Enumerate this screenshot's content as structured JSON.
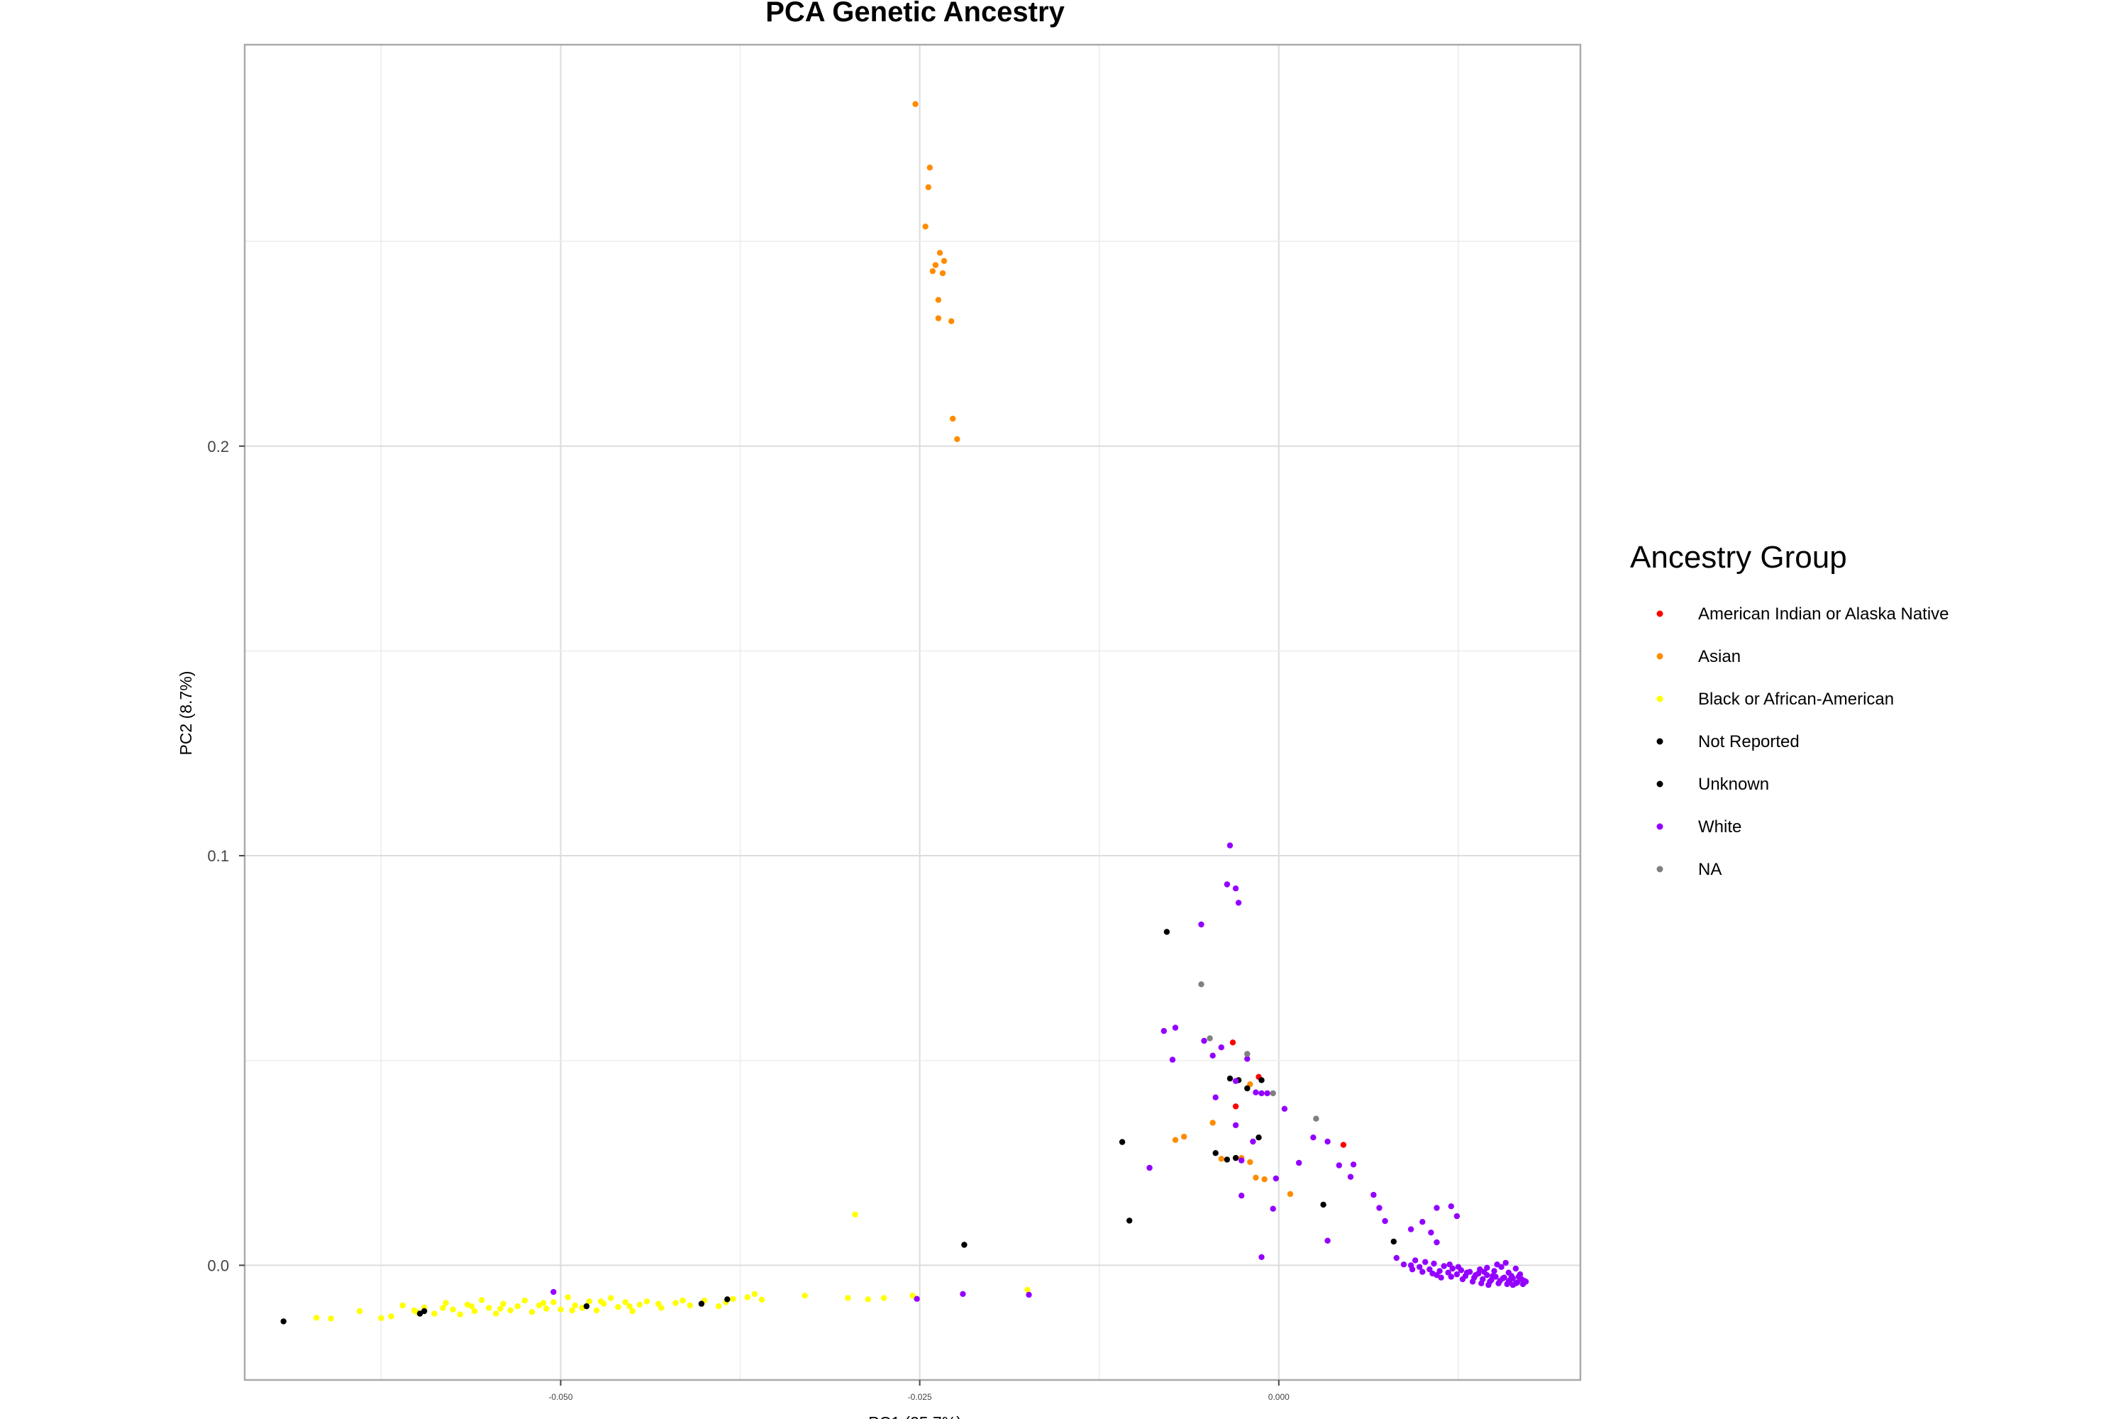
{
  "chart_data": {
    "type": "scatter",
    "title": "PCA Genetic Ancestry",
    "xlabel": "PC1 (25.7%)",
    "ylabel": "PC2 (8.7%)",
    "xlim": [
      -0.072,
      0.021
    ],
    "ylim": [
      -0.028,
      0.298
    ],
    "x_ticks": [
      -0.05,
      -0.025,
      0.0
    ],
    "x_tick_labels": [
      "-0.050",
      "-0.025",
      "0.000"
    ],
    "y_ticks": [
      0.0,
      0.1,
      0.2
    ],
    "y_tick_labels": [
      "0.0",
      "0.1",
      "0.2"
    ],
    "grid": true,
    "legend": {
      "title": "Ancestry Group",
      "position": "right",
      "entries": [
        {
          "label": "American Indian or Alaska Native",
          "color": "#ff0000"
        },
        {
          "label": "Asian",
          "color": "#ff8c00"
        },
        {
          "label": "Black or African-American",
          "color": "#ffff00"
        },
        {
          "label": "Not Reported",
          "color": "#000000"
        },
        {
          "label": "Unknown",
          "color": "#000000"
        },
        {
          "label": "White",
          "color": "#9400ff"
        },
        {
          "label": "NA",
          "color": "#808080"
        }
      ]
    },
    "series": [
      {
        "name": "American Indian or Alaska Native",
        "color": "#ff0000",
        "points": [
          [
            -0.0032,
            0.0544
          ],
          [
            -0.0014,
            0.046
          ],
          [
            -0.003,
            0.0388
          ],
          [
            0.0045,
            0.0294
          ]
        ]
      },
      {
        "name": "Asian",
        "color": "#ff8c00",
        "points": [
          [
            -0.0253,
            0.2835
          ],
          [
            -0.0243,
            0.268
          ],
          [
            -0.0244,
            0.2632
          ],
          [
            -0.0246,
            0.2536
          ],
          [
            -0.0236,
            0.2472
          ],
          [
            -0.0239,
            0.2442
          ],
          [
            -0.0241,
            0.2427
          ],
          [
            -0.0233,
            0.2452
          ],
          [
            -0.0234,
            0.2422
          ],
          [
            -0.0237,
            0.2357
          ],
          [
            -0.0237,
            0.2312
          ],
          [
            -0.0228,
            0.2305
          ],
          [
            -0.0227,
            0.2067
          ],
          [
            -0.0224,
            0.2017
          ],
          [
            -0.0072,
            0.0306
          ],
          [
            -0.0066,
            0.0314
          ],
          [
            -0.0046,
            0.0348
          ],
          [
            -0.004,
            0.026
          ],
          [
            -0.0026,
            0.0262
          ],
          [
            -0.002,
            0.0252
          ],
          [
            -0.0016,
            0.0214
          ],
          [
            -0.001,
            0.021
          ],
          [
            0.0008,
            0.0174
          ],
          [
            -0.002,
            0.0442
          ]
        ]
      },
      {
        "name": "Black or African-American",
        "color": "#ffff00",
        "points": [
          [
            -0.067,
            -0.0128
          ],
          [
            -0.066,
            -0.013
          ],
          [
            -0.064,
            -0.0112
          ],
          [
            -0.0625,
            -0.0129
          ],
          [
            -0.0618,
            -0.0125
          ],
          [
            -0.061,
            -0.0098
          ],
          [
            -0.06,
            -0.0115
          ],
          [
            -0.0595,
            -0.0103
          ],
          [
            -0.0588,
            -0.0118
          ],
          [
            -0.058,
            -0.0092
          ],
          [
            -0.0575,
            -0.0108
          ],
          [
            -0.057,
            -0.012
          ],
          [
            -0.0565,
            -0.0096
          ],
          [
            -0.056,
            -0.0112
          ],
          [
            -0.0555,
            -0.0085
          ],
          [
            -0.055,
            -0.0104
          ],
          [
            -0.0545,
            -0.0118
          ],
          [
            -0.054,
            -0.0094
          ],
          [
            -0.0535,
            -0.011
          ],
          [
            -0.053,
            -0.01
          ],
          [
            -0.0525,
            -0.0086
          ],
          [
            -0.052,
            -0.0114
          ],
          [
            -0.0515,
            -0.0098
          ],
          [
            -0.051,
            -0.0106
          ],
          [
            -0.0505,
            -0.009
          ],
          [
            -0.05,
            -0.0108
          ],
          [
            -0.0495,
            -0.0078
          ],
          [
            -0.049,
            -0.0098
          ],
          [
            -0.0485,
            -0.0104
          ],
          [
            -0.048,
            -0.0088
          ],
          [
            -0.0475,
            -0.011
          ],
          [
            -0.047,
            -0.0094
          ],
          [
            -0.0465,
            -0.008
          ],
          [
            -0.046,
            -0.0102
          ],
          [
            -0.0455,
            -0.009
          ],
          [
            -0.045,
            -0.0112
          ],
          [
            -0.0445,
            -0.0096
          ],
          [
            -0.044,
            -0.0088
          ],
          [
            -0.043,
            -0.0104
          ],
          [
            -0.042,
            -0.0092
          ],
          [
            -0.041,
            -0.0098
          ],
          [
            -0.04,
            -0.0086
          ],
          [
            -0.039,
            -0.01
          ],
          [
            -0.038,
            -0.0082
          ],
          [
            -0.037,
            -0.0078
          ],
          [
            -0.036,
            -0.0084
          ],
          [
            -0.033,
            -0.0074
          ],
          [
            -0.03,
            -0.008
          ],
          [
            -0.0286,
            -0.0083
          ],
          [
            -0.0275,
            -0.008
          ],
          [
            -0.0255,
            -0.0074
          ],
          [
            -0.0175,
            -0.006
          ],
          [
            -0.0295,
            0.0124
          ],
          [
            -0.0602,
            -0.011
          ],
          [
            -0.0582,
            -0.0104
          ],
          [
            -0.0562,
            -0.01
          ],
          [
            -0.0542,
            -0.0106
          ],
          [
            -0.0512,
            -0.0092
          ],
          [
            -0.0492,
            -0.011
          ],
          [
            -0.0472,
            -0.0088
          ],
          [
            -0.0452,
            -0.01
          ],
          [
            -0.0432,
            -0.0094
          ],
          [
            -0.0415,
            -0.0086
          ],
          [
            -0.0385,
            -0.009
          ],
          [
            -0.0365,
            -0.007
          ]
        ]
      },
      {
        "name": "Not Reported",
        "color": "#000000",
        "points": [
          [
            -0.0693,
            -0.0137
          ],
          [
            -0.0595,
            -0.0112
          ],
          [
            -0.0384,
            -0.0083
          ],
          [
            -0.0219,
            0.005
          ],
          [
            -0.0109,
            0.0301
          ],
          [
            -0.0104,
            0.0109
          ],
          [
            -0.0078,
            0.0814
          ],
          [
            -0.0044,
            0.0274
          ],
          [
            -0.0034,
            0.0456
          ],
          [
            -0.0022,
            0.0432
          ],
          [
            -0.0012,
            0.0452
          ],
          [
            -0.0014,
            0.0312
          ],
          [
            -0.0036,
            0.0258
          ],
          [
            0.0031,
            0.0148
          ],
          [
            0.008,
            0.0058
          ]
        ]
      },
      {
        "name": "Unknown",
        "color": "#000000",
        "points": [
          [
            -0.0598,
            -0.0118
          ],
          [
            -0.0482,
            -0.01
          ],
          [
            -0.0402,
            -0.0094
          ],
          [
            -0.003,
            0.0262
          ],
          [
            -0.0028,
            0.0452
          ]
        ]
      },
      {
        "name": "White",
        "color": "#9400ff",
        "points": [
          [
            -0.0505,
            -0.0065
          ],
          [
            -0.0252,
            -0.0082
          ],
          [
            -0.022,
            -0.007
          ],
          [
            -0.0174,
            -0.0072
          ],
          [
            -0.009,
            0.0238
          ],
          [
            -0.008,
            0.0572
          ],
          [
            -0.0072,
            0.058
          ],
          [
            -0.0074,
            0.0502
          ],
          [
            -0.0054,
            0.0832
          ],
          [
            -0.0052,
            0.0548
          ],
          [
            -0.0046,
            0.0512
          ],
          [
            -0.0044,
            0.041
          ],
          [
            -0.004,
            0.0532
          ],
          [
            -0.0036,
            0.093
          ],
          [
            -0.0034,
            0.1025
          ],
          [
            -0.003,
            0.092
          ],
          [
            -0.0028,
            0.0885
          ],
          [
            -0.003,
            0.045
          ],
          [
            -0.003,
            0.0342
          ],
          [
            -0.0026,
            0.0256
          ],
          [
            -0.0026,
            0.017
          ],
          [
            -0.0022,
            0.0504
          ],
          [
            -0.0018,
            0.0302
          ],
          [
            -0.0016,
            0.0422
          ],
          [
            -0.0012,
            0.042
          ],
          [
            -0.0012,
            0.002
          ],
          [
            -0.0008,
            0.042
          ],
          [
            -0.0004,
            0.0138
          ],
          [
            -0.0002,
            0.0212
          ],
          [
            0.0004,
            0.0382
          ],
          [
            0.0014,
            0.025
          ],
          [
            0.0024,
            0.0312
          ],
          [
            0.0034,
            0.0302
          ],
          [
            0.0034,
            0.006
          ],
          [
            0.0042,
            0.0244
          ],
          [
            0.005,
            0.0216
          ],
          [
            0.0052,
            0.0246
          ],
          [
            0.0066,
            0.0172
          ],
          [
            0.007,
            0.014
          ],
          [
            0.0074,
            0.0108
          ],
          [
            0.0082,
            0.0018
          ],
          [
            0.0092,
            0.0088
          ],
          [
            0.01,
            0.0106
          ],
          [
            0.0106,
            0.008
          ],
          [
            0.011,
            0.014
          ],
          [
            0.011,
            0.0056
          ],
          [
            0.012,
            0.0144
          ],
          [
            0.0124,
            0.012
          ],
          [
            0.0092,
            0.0
          ],
          [
            0.0095,
            0.0012
          ],
          [
            0.0098,
            -0.0004
          ],
          [
            0.0102,
            0.0008
          ],
          [
            0.0105,
            -0.001
          ],
          [
            0.0108,
            0.0004
          ],
          [
            0.0112,
            -0.0014
          ],
          [
            0.0115,
            -0.0002
          ],
          [
            0.0118,
            -0.0018
          ],
          [
            0.0121,
            -0.0008
          ],
          [
            0.0124,
            -0.0022
          ],
          [
            0.0127,
            -0.0012
          ],
          [
            0.013,
            -0.0026
          ],
          [
            0.0133,
            -0.0016
          ],
          [
            0.0136,
            -0.003
          ],
          [
            0.0139,
            -0.002
          ],
          [
            0.0142,
            -0.0034
          ],
          [
            0.0145,
            -0.0024
          ],
          [
            0.0148,
            -0.0036
          ],
          [
            0.0151,
            -0.0028
          ],
          [
            0.0154,
            -0.0038
          ],
          [
            0.0157,
            -0.003
          ],
          [
            0.016,
            -0.004
          ],
          [
            0.0163,
            -0.0032
          ],
          [
            0.0166,
            -0.0042
          ],
          [
            0.0169,
            -0.0034
          ],
          [
            0.0172,
            -0.004
          ],
          [
            0.014,
            -0.001
          ],
          [
            0.0145,
            -0.0006
          ],
          [
            0.015,
            -0.0014
          ],
          [
            0.0155,
            -0.0004
          ],
          [
            0.016,
            -0.0018
          ],
          [
            0.0165,
            -0.0008
          ],
          [
            0.0168,
            -0.0022
          ],
          [
            0.0152,
            0.0002
          ],
          [
            0.0158,
            0.0006
          ],
          [
            0.0162,
            -0.0026
          ],
          [
            0.0147,
            -0.004
          ],
          [
            0.0153,
            -0.0044
          ],
          [
            0.0159,
            -0.0046
          ],
          [
            0.0165,
            -0.0044
          ],
          [
            0.0171,
            -0.0038
          ],
          [
            0.0135,
            -0.004
          ],
          [
            0.0128,
            -0.0034
          ],
          [
            0.012,
            -0.0028
          ],
          [
            0.011,
            -0.0024
          ],
          [
            0.01,
            -0.0016
          ],
          [
            0.0093,
            -0.001
          ],
          [
            0.0087,
            0.0002
          ],
          [
            0.0143,
            -0.0016
          ],
          [
            0.0149,
            -0.0026
          ],
          [
            0.0156,
            -0.0032
          ],
          [
            0.0161,
            -0.0036
          ],
          [
            0.0167,
            -0.0028
          ],
          [
            0.0137,
            -0.0024
          ],
          [
            0.0131,
            -0.0018
          ],
          [
            0.0125,
            -0.0004
          ],
          [
            0.0119,
            0.0002
          ],
          [
            0.0113,
            -0.003
          ],
          [
            0.0107,
            -0.002
          ],
          [
            0.0141,
            -0.0044
          ],
          [
            0.0146,
            -0.0048
          ],
          [
            0.0163,
            -0.0048
          ],
          [
            0.017,
            -0.0046
          ]
        ]
      },
      {
        "name": "NA",
        "color": "#808080",
        "points": [
          [
            -0.0054,
            0.0686
          ],
          [
            -0.0048,
            0.0554
          ],
          [
            -0.0022,
            0.0516
          ],
          [
            -0.0004,
            0.042
          ],
          [
            0.0026,
            0.0358
          ]
        ]
      }
    ]
  }
}
